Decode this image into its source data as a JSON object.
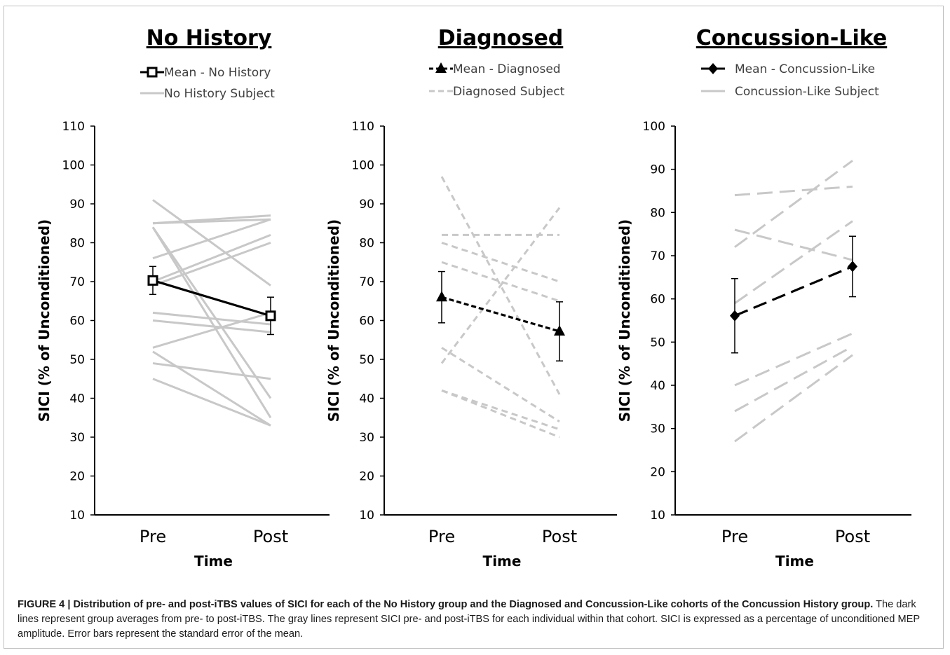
{
  "chart_data": [
    {
      "type": "line",
      "title": "No History",
      "xlabel": "Time",
      "ylabel": "SICI (% of Unconditioned)",
      "categories": [
        "Pre",
        "Post"
      ],
      "ylim": [
        10,
        110
      ],
      "yticks": [
        10,
        20,
        30,
        40,
        50,
        60,
        70,
        80,
        90,
        100,
        110
      ],
      "legend": [
        "Mean - No History",
        "No History Subject"
      ],
      "mean": {
        "name": "Mean - No History",
        "values": [
          70.3,
          61.2
        ],
        "errors": [
          3.6,
          4.8
        ],
        "marker": "square",
        "dash": "solid"
      },
      "subject_style": "solid",
      "subjects": [
        [
          91,
          69
        ],
        [
          85,
          87
        ],
        [
          84,
          35
        ],
        [
          84,
          40
        ],
        [
          85,
          86
        ],
        [
          76,
          86
        ],
        [
          70,
          82
        ],
        [
          69,
          80
        ],
        [
          62,
          59
        ],
        [
          60,
          57
        ],
        [
          53,
          62
        ],
        [
          52,
          33
        ],
        [
          49,
          45
        ],
        [
          45,
          33
        ]
      ]
    },
    {
      "type": "line",
      "title": "Diagnosed",
      "xlabel": "Time",
      "ylabel": "SICI (% of Unconditioned)",
      "categories": [
        "Pre",
        "Post"
      ],
      "ylim": [
        10,
        110
      ],
      "yticks": [
        10,
        20,
        30,
        40,
        50,
        60,
        70,
        80,
        90,
        100,
        110
      ],
      "legend": [
        "Mean - Diagnosed",
        "Diagnosed Subject"
      ],
      "mean": {
        "name": "Mean - Diagnosed",
        "values": [
          66,
          57.2
        ],
        "errors": [
          6.6,
          7.6
        ],
        "marker": "triangle",
        "dash": "dashed"
      },
      "subject_style": "dashed",
      "subjects": [
        [
          97,
          41
        ],
        [
          82,
          82
        ],
        [
          80,
          70
        ],
        [
          75,
          65
        ],
        [
          53,
          34
        ],
        [
          49,
          89
        ],
        [
          42,
          32
        ],
        [
          42,
          30
        ]
      ]
    },
    {
      "type": "line",
      "title": "Concussion-Like",
      "xlabel": "Time",
      "ylabel": "SICI (% of Unconditioned)",
      "categories": [
        "Pre",
        "Post"
      ],
      "ylim": [
        10,
        100
      ],
      "yticks": [
        10,
        20,
        30,
        40,
        50,
        60,
        70,
        80,
        90,
        100
      ],
      "legend": [
        "Mean - Concussion-Like",
        "Concussion-Like Subject"
      ],
      "mean": {
        "name": "Mean - Concussion-Like",
        "values": [
          56.1,
          67.5
        ],
        "errors": [
          8.6,
          7
        ],
        "marker": "diamond",
        "dash": "long-dash"
      },
      "subject_style": "long-dash",
      "subjects": [
        [
          84,
          86
        ],
        [
          76,
          69
        ],
        [
          72,
          92
        ],
        [
          59,
          78
        ],
        [
          40,
          52
        ],
        [
          34,
          49
        ],
        [
          27,
          47
        ]
      ]
    }
  ],
  "caption": {
    "bold": "FIGURE 4 | Distribution of pre- and post-iTBS values of SICI for each of the No History group and the Diagnosed and Concussion-Like cohorts of the Concussion History group.",
    "text": " The dark lines represent group averages from pre- to post-iTBS. The gray lines represent SICI pre- and post-iTBS for each individual within that cohort. SICI is expressed as a percentage of unconditioned MEP amplitude. Error bars represent the standard error of the mean."
  },
  "colors": {
    "mean": "#000000",
    "subject": "#c8c8c8",
    "axis": "#000000",
    "legend_text": "#404040"
  }
}
